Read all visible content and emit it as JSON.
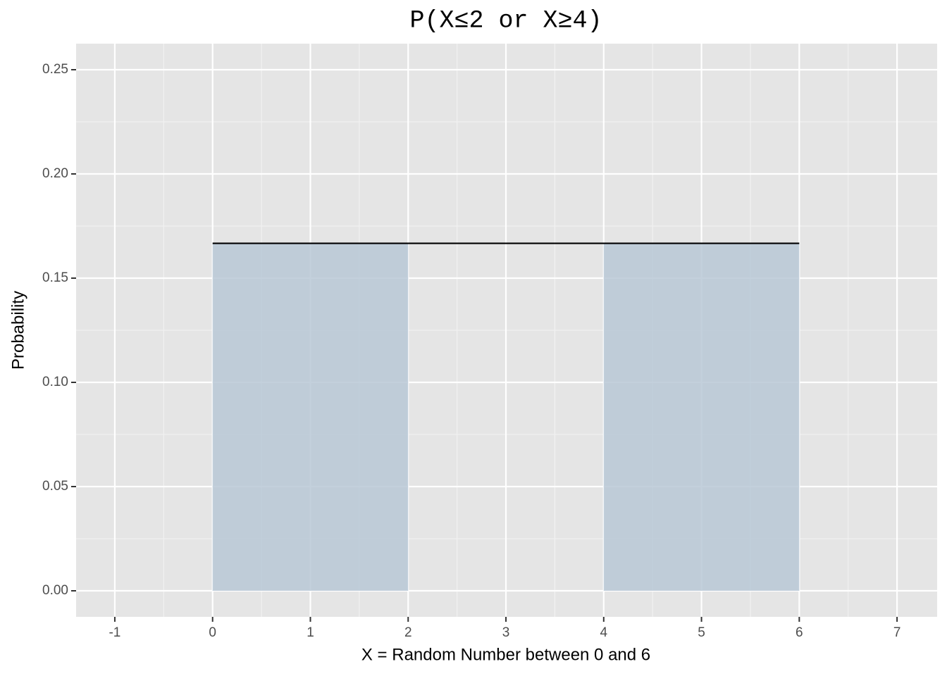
{
  "chart_data": {
    "type": "density",
    "title": "P(X≤2 or X≥4)",
    "x_label": "X = Random Number between 0 and 6",
    "y_label": "Probability",
    "x": [
      0,
      6
    ],
    "y": [
      0.1667,
      0.1667
    ],
    "line_color": "#000000",
    "shaded_regions": [
      [
        0,
        2
      ],
      [
        4,
        6
      ]
    ],
    "shade_color": "#b9c8d6",
    "xlim": [
      -1.396,
      7.41
    ],
    "ylim": [
      -0.0125,
      0.2625
    ],
    "xticks": [
      -1,
      0,
      1,
      2,
      3,
      4,
      5,
      6,
      7
    ],
    "yticks": [
      {
        "value": 0,
        "label": "0.00"
      },
      0.05,
      {
        "value": 0.1,
        "label": "0.10"
      },
      0.15,
      {
        "value": 0.2,
        "label": "0.20"
      },
      0.25
    ],
    "grid": true
  }
}
